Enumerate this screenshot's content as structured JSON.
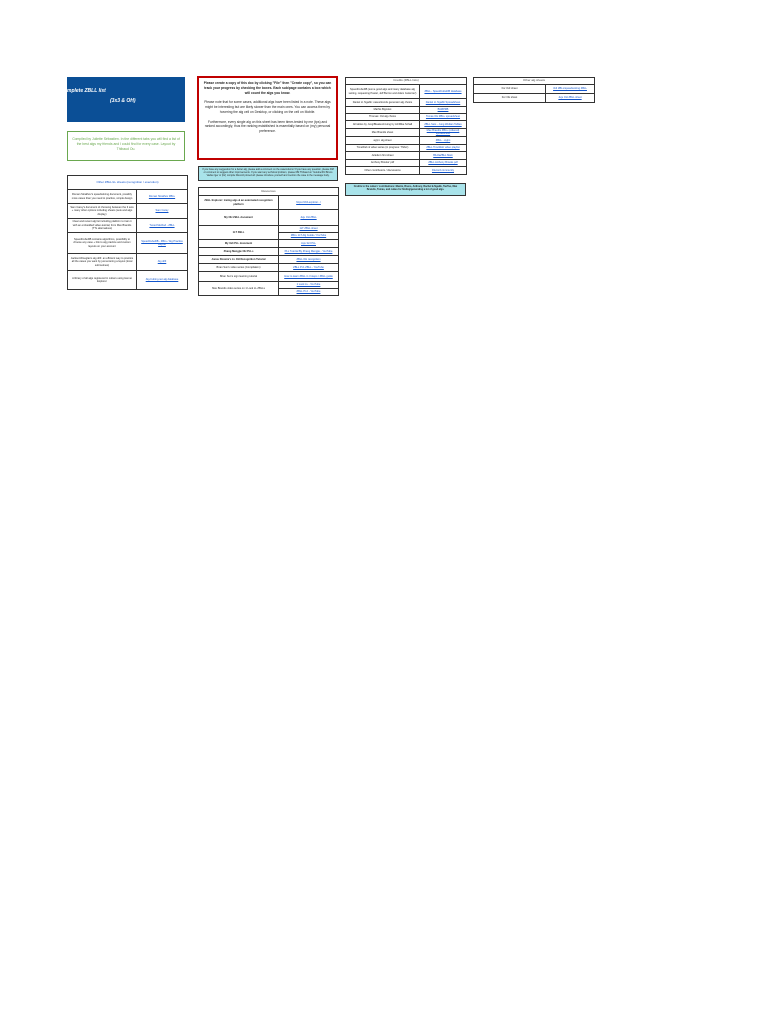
{
  "banner": {
    "line1": "mplete ZBLL list",
    "line2": "(3x3 & OH)"
  },
  "intro": "Compiled by Juliette Sébastien. In the different tabs you will find a list of the best algs my friends and I could find for every case. Layout by Thibaud Ou.",
  "nav": {
    "header": "Other ZBLL/LL sheets (recognition / execution)",
    "rows": [
      {
        "text": "Roman Strakhov's speedsolving document, possibly more cases than you need to practice, simple design",
        "link": "Roman Strakhov ZBLL"
      },
      {
        "text": "Sam Carey's document of choosing between the 3 sets + many other options including sheets (sets and algs display)",
        "link": "Sam Carey"
      },
      {
        "text": "Clear and recent alg list including platform to train it with an embedded video-tutorial, from Max Brandis (TTL alternatives)",
        "link": "Tuned Method - ZBLL"
      },
      {
        "text": "SpeedCubeDB contains algorithms, possibility to choose any case + link to alg practice and custom layouts on your account",
        "link": "SpeedCubeDB - ZBLL / Alg Practice Layout"
      },
      {
        "text": "Jackson/Douglas's alg drill: an efficient way to practice all the cases you want by just entering a layout (local subroutines)",
        "link": "Alg drill"
      },
      {
        "text": "A library of all algs registered in cubers using Hemei Explorer",
        "link": "Alg.Cubing.net alg database"
      }
    ]
  },
  "notice": {
    "p1": "Please create a copy of this doc by clicking \"File\" then \"Create copy\", so you can track your progress by checking the boxes. Each sub/page contains a box which will count the algs you know.",
    "p2": "Please note that for some cases, additional algs have been listed in a note. These algs might be interesting but are likely slower than the main ones. You can access them by hovering the alg cell on Desktop, or clicking on the cell on Mobile.",
    "p3": "Furthermore, every single alg on this sheet has been timer-tested by me (tps) and ranked accordingly, thus the ranking established is essentially based on (my) personal preference."
  },
  "suggest": "If you have any suggestion for a better alg, please add a comment on the case/column! If you have any question, please DM or comment to suggest other improvements. If you want any technical problem, please DM Thibaud on Youtube/Pol Bruno Vaclav Iger or (for) compile Discord pinned all: please introduce yourself and mention the case in the message body.",
  "resources": {
    "header": "Resources",
    "rows": [
      {
        "label": "ZBLL Explorer: trainig algs & an automated recognition platform",
        "links": [
          "https://zbll-explorer.../"
        ]
      },
      {
        "label": "My OH ZBLL document",
        "links": [
          "Juju OH ZBLL"
        ]
      },
      {
        "label": "1LT ZBLL",
        "links": [
          "1LT ZBLL sheet",
          "ZBLL 1LT Alg Guide / YouTube"
        ]
      },
      {
        "label": "My 3x3 PLL document",
        "links": [
          "Juju 3x3 PLL"
        ]
      },
      {
        "label": "Zhang Mengjie OH PLLs",
        "links": [
          "PLL Tutorial By Zhang Mengjie - YouTube"
        ]
      },
      {
        "label": "Jonas Rosière's LL OH Recognition Tutorial",
        "links": [
          "ZBLL OH recognition"
        ]
      },
      {
        "label": "Brian Sun's video series (Compilation)",
        "links": [
          "ZBLL Pt.1 ZBLL - YouTube"
        ]
      },
      {
        "label": "Brian Sun's sign learning tutorial",
        "links": [
          "How to learn ZBLL in 3 steps / ZBLL guide"
        ]
      },
      {
        "label": "Max Brandis video series on 1 Look LL ZBLLs",
        "links": [
          "1 Look LL - YouTube",
          "ZBLL Pt.2 - YouTube"
        ]
      }
    ]
  },
  "credits": {
    "header": "Credits (ZBLL lists)",
    "rows": [
      {
        "label": "SpeedCubeDB (some good algs and many database alg setting, requesting Pastel, Jeff Burton and Adam Gutierrez)",
        "link": "ZBLL - SpeedCubeDB database"
      },
      {
        "label": "Daniel H. Ngabb: cases/trends generator alg choice",
        "link": "Daniel H. Ngabb Spreadsheet"
      },
      {
        "label": "Mathis Bignolet",
        "link": "BGBPRB"
      },
      {
        "label": "Thomas: OH alg choice",
        "link": "Tomas OH ZBLL spreadsheet"
      },
      {
        "label": "All tables by Jung/Bleaker/ccuing by Ari/Mike Schall",
        "link": "ZBLL Sets - Jung Weilian Tables"
      },
      {
        "label": "Max Brandis sheet",
        "link": "Max Brandis ZBLL (ordered) spreadsheet"
      },
      {
        "label": "ayijm: alg sheet",
        "link": "ZBLL - ayijm"
      },
      {
        "label": "TimeWeb & video series (in progress: Thib/x)",
        "link": "ZBLL TimeWeb video playlist"
      },
      {
        "label": "Juliette's first sheet",
        "link": "BiUdaZBLL Main"
      },
      {
        "label": "Anthony Brooks' pdf",
        "link": "ZBLL Anthony Brooks pdf"
      },
      {
        "label": "Other contributors / discussions",
        "link": "Discord community"
      }
    ]
  },
  "thanks": "Credits to the cubers' contributions: Maxim, Breno, Anthony, Rachel & Ngabb, TaoTao, Max Brandis, Tomas, and cubes for finding/generating a lot of good algs.",
  "other": {
    "header": "Other alg sheets",
    "rows": [
      {
        "label": "For 3x3 sheet",
        "link": "3x3 ZBLL/speedsolving ZBLL"
      },
      {
        "label": "For OH sheet",
        "link": "Juju OH ZBLL sheet"
      }
    ]
  },
  "colors": {
    "banner": "#0b4f96",
    "intro": "#6aa84f",
    "notice_border": "#c00000",
    "note_bg": "#a9e3ea",
    "link": "#1155cc"
  }
}
